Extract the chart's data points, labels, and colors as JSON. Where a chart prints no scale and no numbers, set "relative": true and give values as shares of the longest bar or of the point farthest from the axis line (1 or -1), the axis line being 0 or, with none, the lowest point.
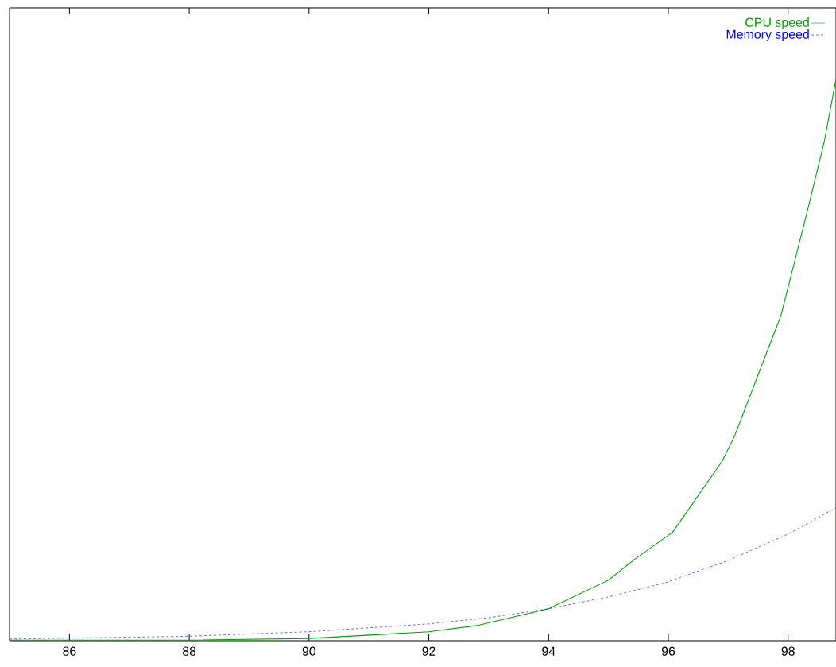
{
  "chart_data": {
    "type": "line",
    "relative": true,
    "xlim": [
      85,
      98.8
    ],
    "xticks": [
      86,
      88,
      90,
      92,
      94,
      96,
      98
    ],
    "legend": "top right",
    "marker": "none",
    "series": [
      {
        "name": "CPU speed",
        "color": "#00a000",
        "line_style": "solid",
        "x": [
          85,
          88,
          90,
          92,
          92.8,
          94,
          95,
          95.45,
          96.07,
          96.9,
          97.1,
          97.88,
          98.33,
          98.6,
          98.8
        ],
        "values": [
          0.001,
          0.001,
          0.004,
          0.016,
          0.027,
          0.057,
          0.108,
          0.146,
          0.193,
          0.32,
          0.363,
          0.579,
          0.769,
          0.887,
          1.0
        ]
      },
      {
        "name": "Memory speed",
        "color": "#0000ff",
        "line_style": "dashed",
        "x": [
          85,
          88,
          90,
          92,
          93,
          94,
          95,
          95.97,
          97,
          98,
          98.8
        ],
        "values": [
          0.003,
          0.008,
          0.016,
          0.03,
          0.041,
          0.057,
          0.078,
          0.104,
          0.143,
          0.19,
          0.237
        ]
      }
    ]
  }
}
